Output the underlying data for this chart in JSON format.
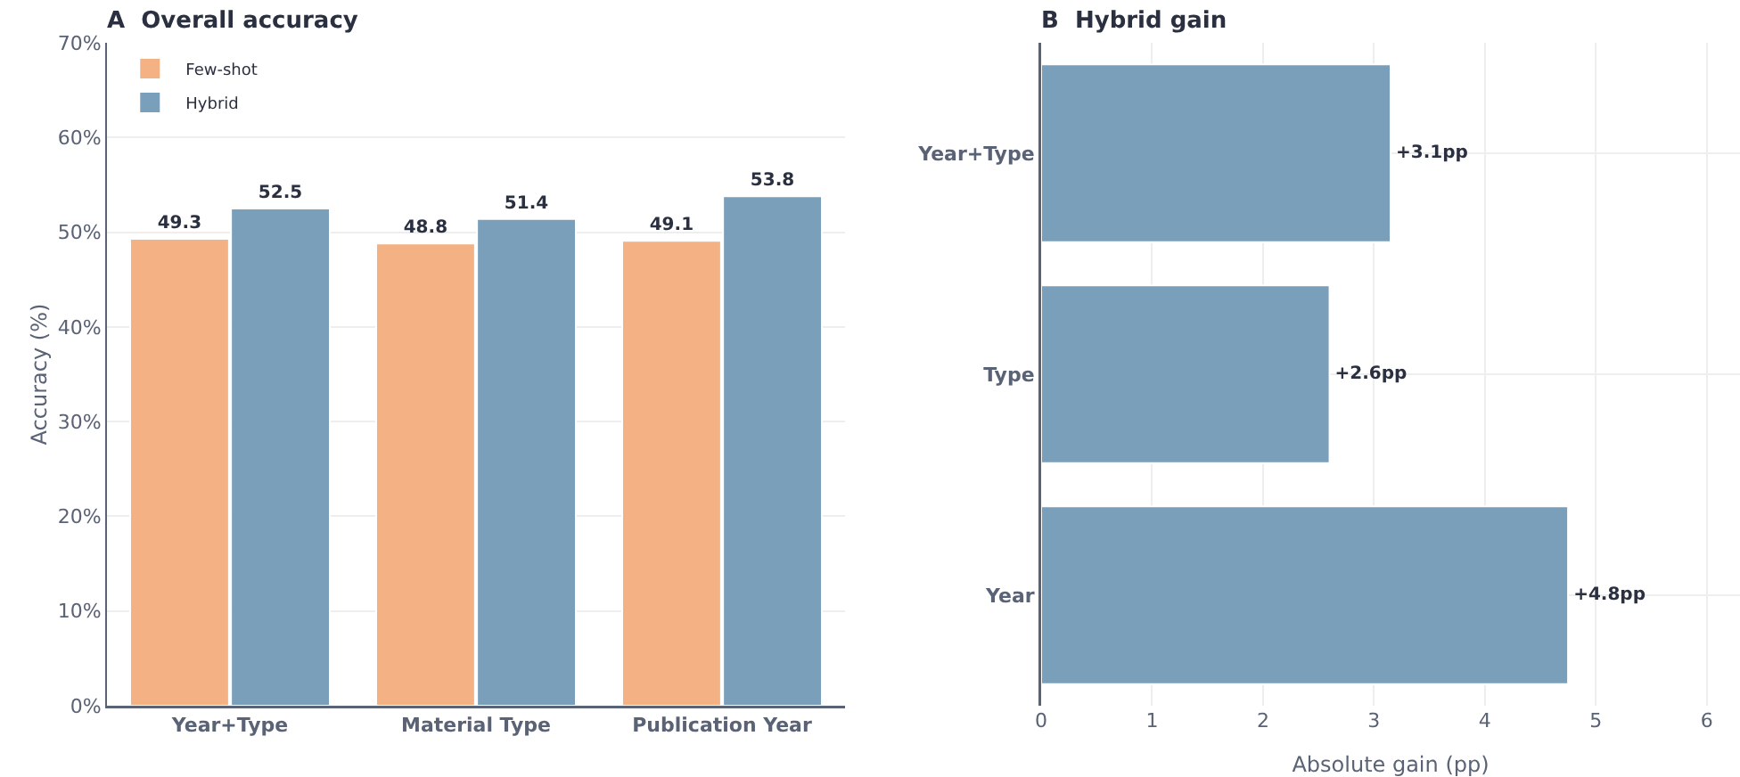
{
  "chart_data": [
    {
      "type": "bar",
      "title": "A  Overall accuracy",
      "ylabel": "Accuracy (%)",
      "categories": [
        "Year+Type",
        "Material Type",
        "Publication Year"
      ],
      "series": [
        {
          "name": "Few-shot",
          "color": "#f4b183",
          "values": [
            49.3,
            48.8,
            49.1
          ]
        },
        {
          "name": "Hybrid",
          "color": "#7a9fba",
          "values": [
            52.5,
            51.4,
            53.8
          ]
        }
      ],
      "ylim": [
        0,
        70
      ],
      "yticks": [
        {
          "value": 0,
          "label": "0%"
        },
        {
          "value": 10,
          "label": "10%"
        },
        {
          "value": 20,
          "label": "20%"
        },
        {
          "value": 30,
          "label": "30%"
        },
        {
          "value": 40,
          "label": "40%"
        },
        {
          "value": 50,
          "label": "50%"
        },
        {
          "value": 60,
          "label": "60%"
        },
        {
          "value": 70,
          "label": "70%"
        }
      ],
      "grid": "y",
      "legend": "top left",
      "data_labels": true
    },
    {
      "type": "bar",
      "title": "B  Hybrid gain",
      "xlabel": "Absolute gain (pp)",
      "orientation": "horizontal",
      "categories": [
        "Year+Type",
        "Type",
        "Year"
      ],
      "values": [
        3.15,
        2.6,
        4.75
      ],
      "color": "#7a9fba",
      "value_labels": [
        "+3.1pp",
        "+2.6pp",
        "+4.8pp"
      ],
      "xlim": [
        0,
        6.3
      ],
      "xticks": [
        0,
        1,
        2,
        3,
        4,
        5,
        6
      ],
      "grid": true,
      "legend": false
    }
  ]
}
